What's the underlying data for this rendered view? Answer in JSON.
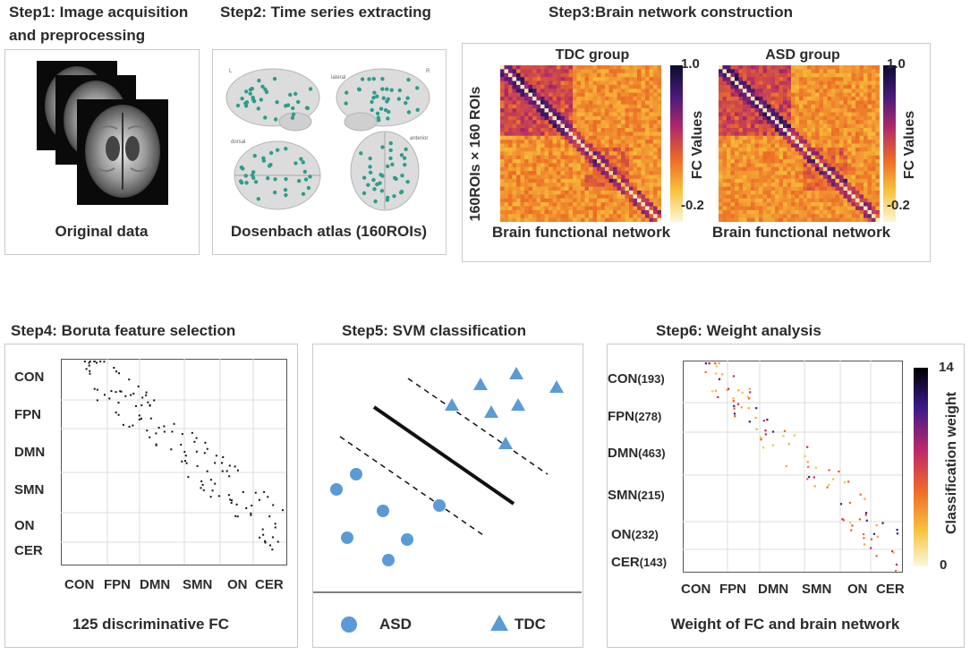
{
  "steps": {
    "step1": {
      "title_line1": "Step1: Image acquisition",
      "title_line2": "and preprocessing",
      "caption": "Original data"
    },
    "step2": {
      "title": "Step2: Time series extracting",
      "caption": "Dosenbach atlas (160ROIs)",
      "view_labels": [
        "L",
        "R",
        "lateral",
        "dorsal",
        "anterior"
      ]
    },
    "step3": {
      "title": "Step3:Brain network construction",
      "y_axis_label": "160ROIs × 160 ROIs",
      "matrices": [
        {
          "group": "TDC group",
          "caption": "Brain functional network",
          "cbar_max": "1.0",
          "cbar_min": "-0.2",
          "cbar_label": "FC Values"
        },
        {
          "group": "ASD group",
          "caption": "Brain functional network",
          "cbar_max": "1.0",
          "cbar_min": "-0.2",
          "cbar_label": "FC Values"
        }
      ]
    },
    "step4": {
      "title": "Step4: Boruta feature selection",
      "networks": [
        "CON",
        "FPN",
        "DMN",
        "SMN",
        "ON",
        "CER"
      ],
      "x_ticks": [
        "CON",
        "FPN",
        "DMN",
        "SMN",
        "ON",
        "CER"
      ],
      "caption": "125 discriminative FC"
    },
    "step5": {
      "title": "Step5: SVM classification",
      "legend": [
        {
          "shape": "circle",
          "label": "ASD"
        },
        {
          "shape": "triangle",
          "label": "TDC"
        }
      ]
    },
    "step6": {
      "title": "Step6: Weight analysis",
      "networks": [
        {
          "name": "CON",
          "count": "(193)"
        },
        {
          "name": "FPN",
          "count": "(278)"
        },
        {
          "name": "DMN",
          "count": "(463)"
        },
        {
          "name": "SMN",
          "count": "(215)"
        },
        {
          "name": "ON",
          "count": "(232)"
        },
        {
          "name": "CER",
          "count": "(143)"
        }
      ],
      "x_ticks": [
        "CON",
        "FPN",
        "DMN",
        "SMN",
        "ON",
        "CER"
      ],
      "cbar_max": "14",
      "cbar_min": "0",
      "cbar_label": "Classification weight",
      "caption": "Weight of FC and brain network"
    }
  },
  "colors": {
    "svm_marker": "#5b9bd5",
    "panel_border": "#c9c9c9",
    "brain_dot": "#2e9c8c"
  }
}
